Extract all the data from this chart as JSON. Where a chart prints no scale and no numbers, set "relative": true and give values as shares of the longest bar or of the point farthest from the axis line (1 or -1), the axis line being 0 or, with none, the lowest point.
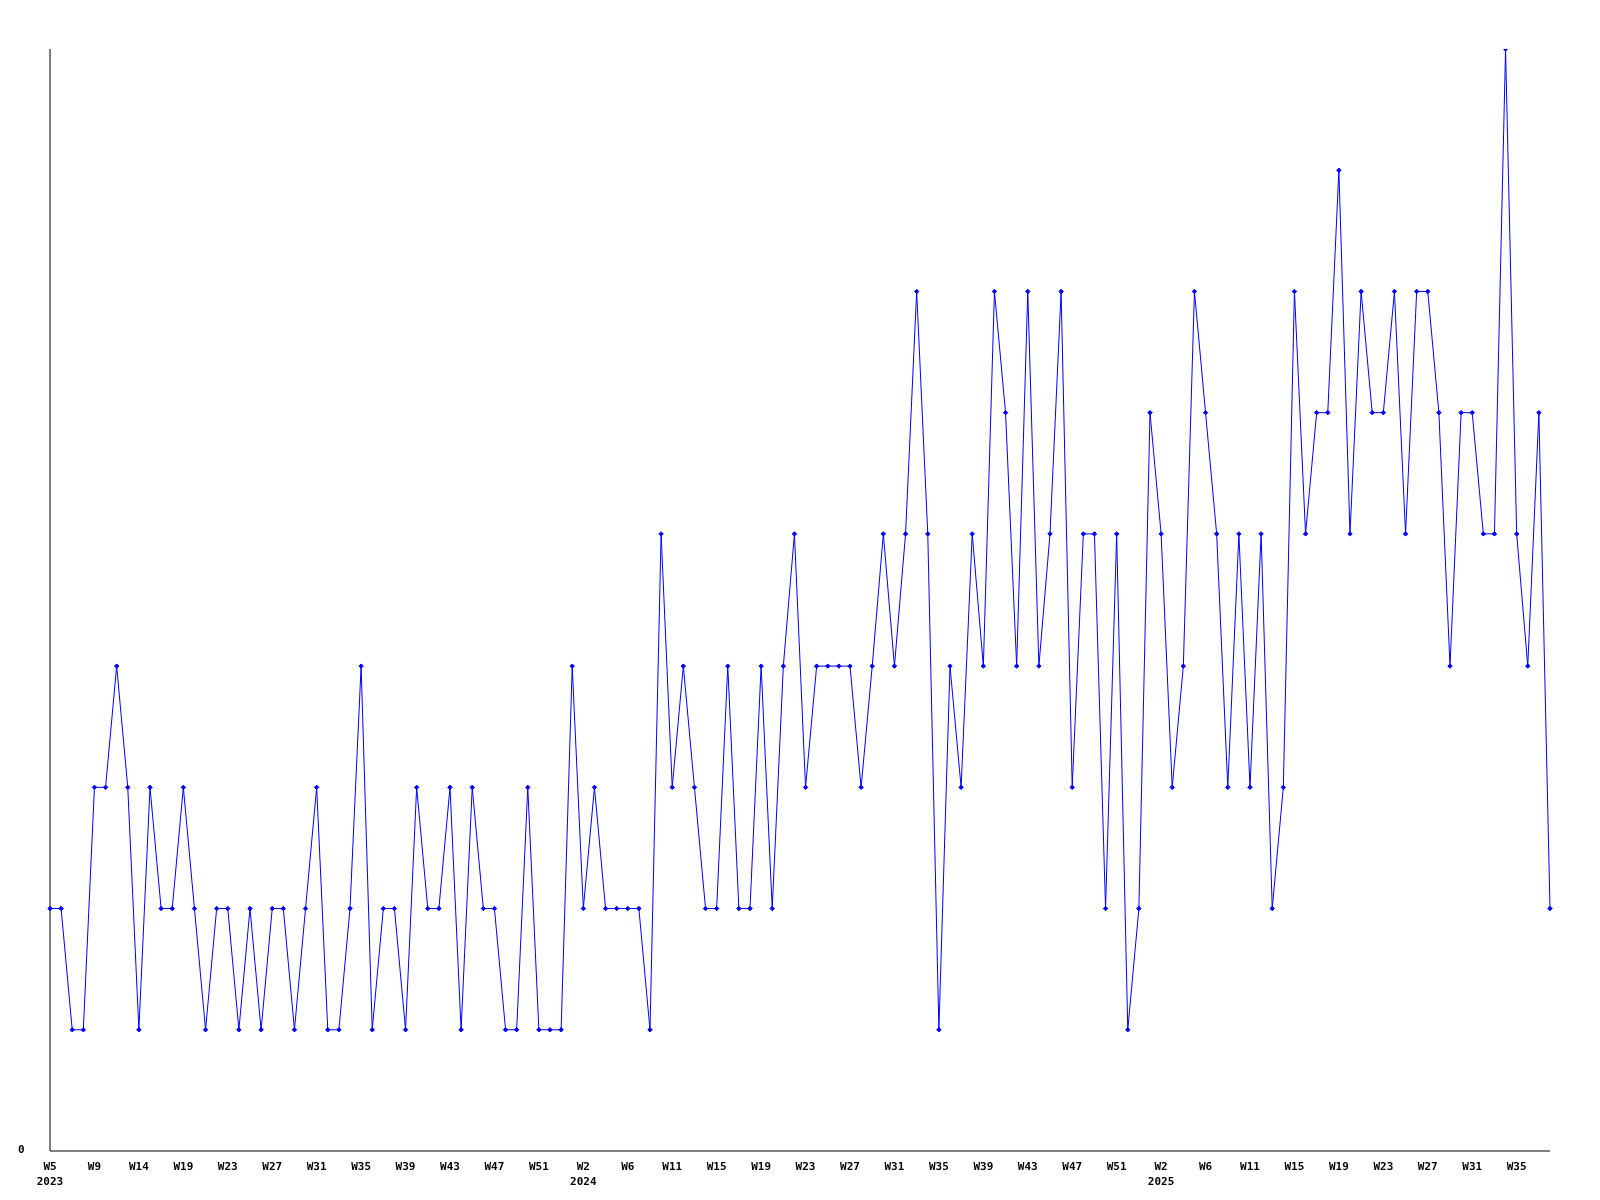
{
  "chart_data": {
    "type": "line",
    "relative": true,
    "annotations": [
      "0"
    ],
    "marker": "diamond",
    "line_style": "solid",
    "categories": [
      "W5\n2023",
      null,
      null,
      null,
      "W9",
      null,
      null,
      null,
      "W14",
      null,
      null,
      null,
      "W19",
      null,
      null,
      null,
      "W23",
      null,
      null,
      null,
      "W27",
      null,
      null,
      null,
      "W31",
      null,
      null,
      null,
      "W35",
      null,
      null,
      null,
      "W39",
      null,
      null,
      null,
      "W43",
      null,
      null,
      null,
      "W47",
      null,
      null,
      null,
      "W51",
      null,
      null,
      null,
      "W2\n2024",
      null,
      null,
      null,
      "W6",
      null,
      null,
      null,
      "W11",
      null,
      null,
      null,
      "W15",
      null,
      null,
      null,
      "W19",
      null,
      null,
      null,
      "W23",
      null,
      null,
      null,
      "W27",
      null,
      null,
      null,
      "W31",
      null,
      null,
      null,
      "W35",
      null,
      null,
      null,
      "W39",
      null,
      null,
      null,
      "W43",
      null,
      null,
      null,
      "W47",
      null,
      null,
      null,
      "W51",
      null,
      null,
      null,
      "W2\n2025",
      null,
      null,
      null,
      "W6",
      null,
      null,
      null,
      "W11",
      null,
      null,
      null,
      "W15",
      null,
      null,
      null,
      "W19",
      null,
      null,
      null,
      "W23",
      null,
      null,
      null,
      "W27",
      null,
      null,
      null,
      "W31",
      null,
      null,
      null,
      "W35",
      null,
      null,
      null
    ],
    "series": [
      {
        "color": "#0000ff",
        "values": [
          0.22,
          0.22,
          0.11,
          0.11,
          0.33,
          0.33,
          0.44,
          0.33,
          0.11,
          0.33,
          0.22,
          0.22,
          0.33,
          0.22,
          0.11,
          0.22,
          0.22,
          0.11,
          0.22,
          0.11,
          0.22,
          0.22,
          0.11,
          0.22,
          0.33,
          0.11,
          0.11,
          0.22,
          0.44,
          0.11,
          0.22,
          0.22,
          0.11,
          0.33,
          0.22,
          0.22,
          0.33,
          0.11,
          0.33,
          0.22,
          0.22,
          0.11,
          0.11,
          0.33,
          0.11,
          0.11,
          0.11,
          0.44,
          0.22,
          0.33,
          0.22,
          0.22,
          0.22,
          0.22,
          0.11,
          0.56,
          0.33,
          0.44,
          0.33,
          0.22,
          0.22,
          0.44,
          0.22,
          0.22,
          0.44,
          0.22,
          0.44,
          0.56,
          0.33,
          0.44,
          0.44,
          0.44,
          0.44,
          0.33,
          0.44,
          0.56,
          0.44,
          0.56,
          0.78,
          0.56,
          0.11,
          0.44,
          0.33,
          0.56,
          0.44,
          0.78,
          0.67,
          0.44,
          0.78,
          0.44,
          0.56,
          0.78,
          0.33,
          0.56,
          0.56,
          0.22,
          0.56,
          0.11,
          0.22,
          0.67,
          0.56,
          0.33,
          0.44,
          0.78,
          0.67,
          0.56,
          0.33,
          0.56,
          0.33,
          0.56,
          0.22,
          0.33,
          0.78,
          0.56,
          0.67,
          0.67,
          0.89,
          0.56,
          0.78,
          0.67,
          0.67,
          0.78,
          0.56,
          0.78,
          0.78,
          0.67,
          0.44,
          0.67,
          0.67,
          0.56,
          0.56,
          1,
          0.56,
          0.44,
          0.67,
          0.22
        ]
      }
    ]
  }
}
